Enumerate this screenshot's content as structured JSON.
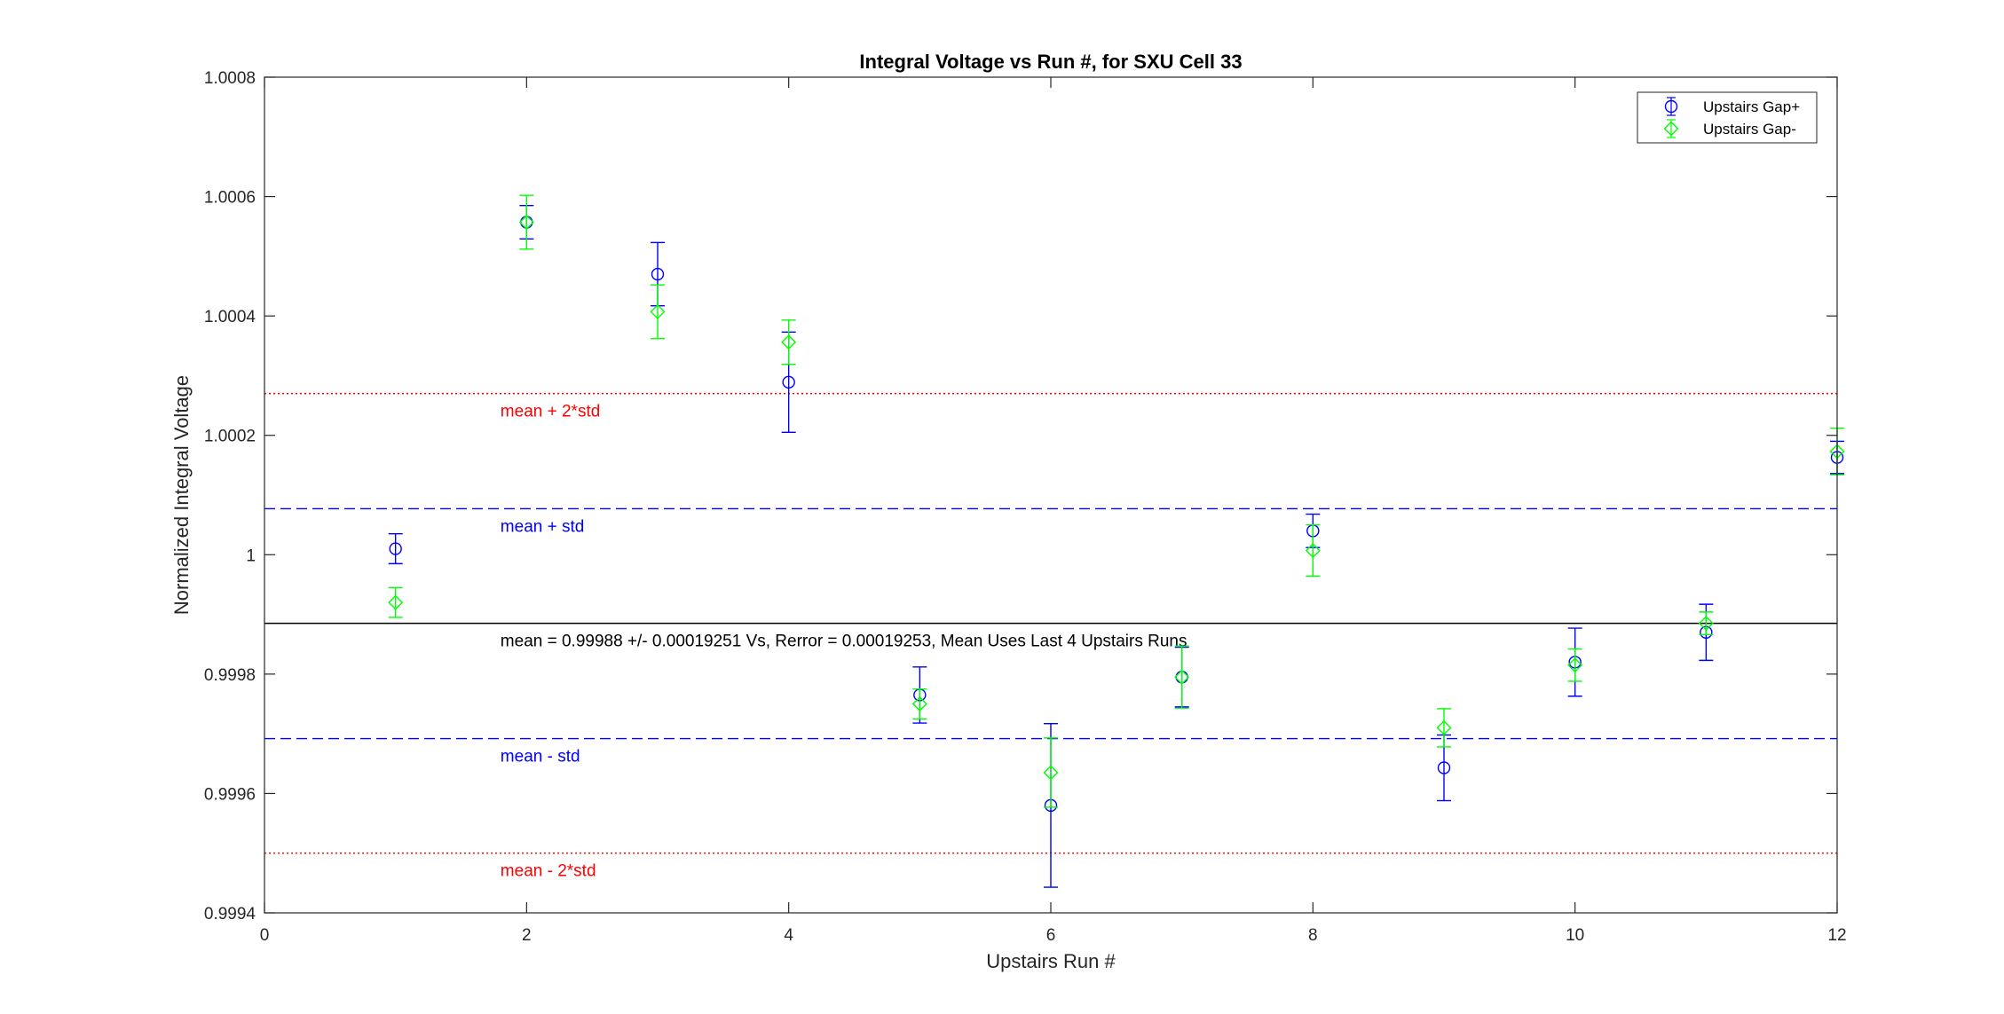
{
  "chart_data": {
    "type": "scatter",
    "title": "Integral Voltage vs Run #, for SXU Cell 33",
    "xlabel": "Upstairs Run #",
    "ylabel": "Normalized Integral Voltage",
    "xlim": [
      0,
      12
    ],
    "ylim": [
      0.9994,
      1.0008
    ],
    "xticks": [
      0,
      2,
      4,
      6,
      8,
      10,
      12
    ],
    "xtick_labels": [
      "0",
      "2",
      "4",
      "6",
      "8",
      "10",
      "12"
    ],
    "yticks": [
      0.9994,
      0.9996,
      0.9998,
      1.0,
      1.0002,
      1.0004,
      1.0006,
      1.0008
    ],
    "ytick_labels": [
      "0.9994",
      "0.9996",
      "0.9998",
      "1",
      "1.0002",
      "1.0004",
      "1.0006",
      "1.0008"
    ],
    "grid": false,
    "legend_position": "top-right",
    "series": [
      {
        "name": "Upstairs Gap+",
        "marker": "circle",
        "color": "#0000ff",
        "x": [
          1,
          2,
          3,
          4,
          5,
          6,
          7,
          8,
          9,
          10,
          11,
          12
        ],
        "y": [
          1.00001,
          1.000557,
          1.00047,
          1.000289,
          0.999765,
          0.99958,
          0.999795,
          1.00004,
          0.999643,
          0.99982,
          0.99987,
          1.000163
        ],
        "err": [
          2.5e-05,
          2.8e-05,
          5.3e-05,
          8.4e-05,
          4.7e-05,
          0.000137,
          5e-05,
          2.8e-05,
          5.5e-05,
          5.7e-05,
          4.7e-05,
          2.7e-05
        ]
      },
      {
        "name": "Upstairs Gap-",
        "marker": "diamond",
        "color": "#00ff00",
        "x": [
          1,
          2,
          3,
          4,
          5,
          6,
          7,
          8,
          9,
          10,
          11,
          12
        ],
        "y": [
          0.99992,
          1.000557,
          1.000407,
          1.000356,
          0.99975,
          0.999635,
          0.999795,
          1.000007,
          0.99971,
          0.999815,
          0.999885,
          1.000173
        ],
        "err": [
          2.5e-05,
          4.5e-05,
          4.5e-05,
          3.7e-05,
          2.5e-05,
          5.8e-05,
          5.2e-05,
          4.3e-05,
          3.2e-05,
          2.7e-05,
          1.9e-05,
          3.9e-05
        ]
      }
    ],
    "reference_lines": [
      {
        "label": "mean + 2*std",
        "y": 1.00027,
        "color": "#ff0000",
        "style": "dotted"
      },
      {
        "label": "mean + std",
        "y": 1.000077,
        "color": "#0000ff",
        "style": "dashed"
      },
      {
        "label": "mean = 0.99988 +/- 0.00019251 Vs, Rerror = 0.00019253, Mean Uses Last 4 Upstairs Runs",
        "y": 0.999885,
        "color": "#000000",
        "style": "solid"
      },
      {
        "label": "mean - std",
        "y": 0.999692,
        "color": "#0000ff",
        "style": "dashed"
      },
      {
        "label": "mean - 2*std",
        "y": 0.9995,
        "color": "#ff0000",
        "style": "dotted"
      }
    ]
  }
}
